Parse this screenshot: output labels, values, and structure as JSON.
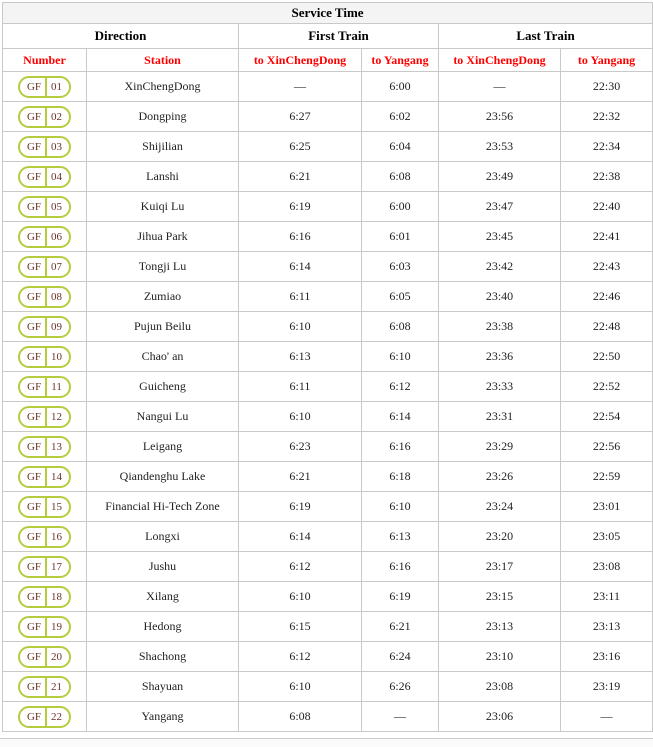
{
  "table": {
    "title": "Service Time",
    "group_headers": {
      "direction": "Direction",
      "first_train": "First Train",
      "last_train": "Last Train"
    },
    "column_headers": {
      "number": "Number",
      "station": "Station",
      "first_to_xinchengdong": "to XinChengDong",
      "first_to_yangang": "to Yangang",
      "last_to_xinchengdong": "to XinChengDong",
      "last_to_yangang": "to Yangang"
    },
    "badge_prefix": "GF",
    "rows": [
      {
        "number": "01",
        "station": "XinChengDong",
        "first_to_xinchengdong": "—",
        "first_to_yangang": "6:00",
        "last_to_xinchengdong": "—",
        "last_to_yangang": "22:30"
      },
      {
        "number": "02",
        "station": "Dongping",
        "first_to_xinchengdong": "6:27",
        "first_to_yangang": "6:02",
        "last_to_xinchengdong": "23:56",
        "last_to_yangang": "22:32"
      },
      {
        "number": "03",
        "station": "Shijilian",
        "first_to_xinchengdong": "6:25",
        "first_to_yangang": "6:04",
        "last_to_xinchengdong": "23:53",
        "last_to_yangang": "22:34"
      },
      {
        "number": "04",
        "station": "Lanshi",
        "first_to_xinchengdong": "6:21",
        "first_to_yangang": "6:08",
        "last_to_xinchengdong": "23:49",
        "last_to_yangang": "22:38"
      },
      {
        "number": "05",
        "station": "Kuiqi Lu",
        "first_to_xinchengdong": "6:19",
        "first_to_yangang": "6:00",
        "last_to_xinchengdong": "23:47",
        "last_to_yangang": "22:40"
      },
      {
        "number": "06",
        "station": "Jihua Park",
        "first_to_xinchengdong": "6:16",
        "first_to_yangang": "6:01",
        "last_to_xinchengdong": "23:45",
        "last_to_yangang": "22:41"
      },
      {
        "number": "07",
        "station": "Tongji Lu",
        "first_to_xinchengdong": "6:14",
        "first_to_yangang": "6:03",
        "last_to_xinchengdong": "23:42",
        "last_to_yangang": "22:43"
      },
      {
        "number": "08",
        "station": "Zumiao",
        "first_to_xinchengdong": "6:11",
        "first_to_yangang": "6:05",
        "last_to_xinchengdong": "23:40",
        "last_to_yangang": "22:46"
      },
      {
        "number": "09",
        "station": "Pujun Beilu",
        "first_to_xinchengdong": "6:10",
        "first_to_yangang": "6:08",
        "last_to_xinchengdong": "23:38",
        "last_to_yangang": "22:48"
      },
      {
        "number": "10",
        "station": "Chao' an",
        "first_to_xinchengdong": "6:13",
        "first_to_yangang": "6:10",
        "last_to_xinchengdong": "23:36",
        "last_to_yangang": "22:50"
      },
      {
        "number": "11",
        "station": "Guicheng",
        "first_to_xinchengdong": "6:11",
        "first_to_yangang": "6:12",
        "last_to_xinchengdong": "23:33",
        "last_to_yangang": "22:52"
      },
      {
        "number": "12",
        "station": "Nangui Lu",
        "first_to_xinchengdong": "6:10",
        "first_to_yangang": "6:14",
        "last_to_xinchengdong": "23:31",
        "last_to_yangang": "22:54"
      },
      {
        "number": "13",
        "station": "Leigang",
        "first_to_xinchengdong": "6:23",
        "first_to_yangang": "6:16",
        "last_to_xinchengdong": "23:29",
        "last_to_yangang": "22:56"
      },
      {
        "number": "14",
        "station": "Qiandenghu Lake",
        "first_to_xinchengdong": "6:21",
        "first_to_yangang": "6:18",
        "last_to_xinchengdong": "23:26",
        "last_to_yangang": "22:59"
      },
      {
        "number": "15",
        "station": "Financial Hi-Tech Zone",
        "first_to_xinchengdong": "6:19",
        "first_to_yangang": "6:10",
        "last_to_xinchengdong": "23:24",
        "last_to_yangang": "23:01"
      },
      {
        "number": "16",
        "station": "Longxi",
        "first_to_xinchengdong": "6:14",
        "first_to_yangang": "6:13",
        "last_to_xinchengdong": "23:20",
        "last_to_yangang": "23:05"
      },
      {
        "number": "17",
        "station": "Jushu",
        "first_to_xinchengdong": "6:12",
        "first_to_yangang": "6:16",
        "last_to_xinchengdong": "23:17",
        "last_to_yangang": "23:08"
      },
      {
        "number": "18",
        "station": "Xilang",
        "first_to_xinchengdong": "6:10",
        "first_to_yangang": "6:19",
        "last_to_xinchengdong": "23:15",
        "last_to_yangang": "23:11"
      },
      {
        "number": "19",
        "station": "Hedong",
        "first_to_xinchengdong": "6:15",
        "first_to_yangang": "6:21",
        "last_to_xinchengdong": "23:13",
        "last_to_yangang": "23:13"
      },
      {
        "number": "20",
        "station": "Shachong",
        "first_to_xinchengdong": "6:12",
        "first_to_yangang": "6:24",
        "last_to_xinchengdong": "23:10",
        "last_to_yangang": "23:16"
      },
      {
        "number": "21",
        "station": "Shayuan",
        "first_to_xinchengdong": "6:10",
        "first_to_yangang": "6:26",
        "last_to_xinchengdong": "23:08",
        "last_to_yangang": "23:19"
      },
      {
        "number": "22",
        "station": "Yangang",
        "first_to_xinchengdong": "6:08",
        "first_to_yangang": "—",
        "last_to_xinchengdong": "23:06",
        "last_to_yangang": "—"
      }
    ]
  },
  "colors": {
    "column_header_red": "#ff0000",
    "badge_border_green": "#b5cc3f",
    "badge_text_brown": "#6b3226",
    "grid_border_gray": "#c9c9c9",
    "title_row_background": "#f4f4f4"
  }
}
